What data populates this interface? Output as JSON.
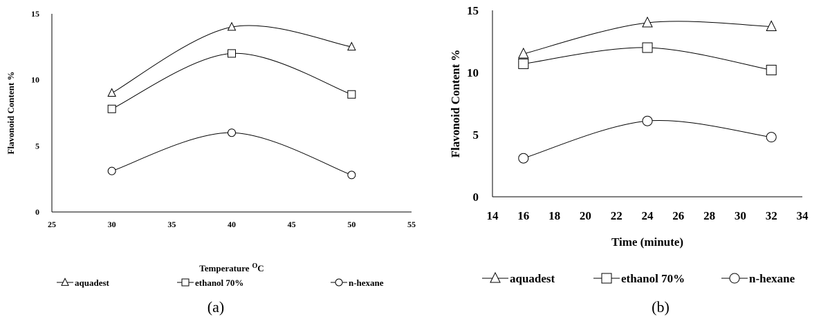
{
  "chart_data": [
    {
      "type": "line",
      "caption": "(a)",
      "xlabel": "Temperature",
      "xlabel_sup": "O",
      "xlabel_unit": "C",
      "ylabel": "Flavonoid Content %",
      "xlim": [
        25,
        55
      ],
      "ylim": [
        0,
        15
      ],
      "xticks": [
        25,
        30,
        35,
        40,
        45,
        50,
        55
      ],
      "yticks": [
        0,
        5,
        10,
        15
      ],
      "grid": false,
      "legend_position": "bottom",
      "x": [
        30,
        40,
        50
      ],
      "series": [
        {
          "name": "aquadest",
          "marker": "triangle",
          "values": [
            9.0,
            14.0,
            12.5
          ]
        },
        {
          "name": "ethanol 70%",
          "marker": "square",
          "values": [
            7.8,
            12.0,
            8.9
          ]
        },
        {
          "name": "n-hexane",
          "marker": "circle",
          "values": [
            3.1,
            6.0,
            2.8
          ]
        }
      ]
    },
    {
      "type": "line",
      "caption": "(b)",
      "xlabel": "Time (minute)",
      "ylabel": "Flavonoid Content %",
      "xlim": [
        14,
        34
      ],
      "ylim": [
        0,
        15
      ],
      "xticks": [
        14,
        16,
        18,
        20,
        22,
        24,
        26,
        28,
        30,
        32,
        34
      ],
      "yticks": [
        0,
        5,
        10,
        15
      ],
      "grid": false,
      "legend_position": "bottom",
      "x": [
        16,
        24,
        32
      ],
      "series": [
        {
          "name": "aquadest",
          "marker": "triangle",
          "values": [
            11.5,
            14.0,
            13.7
          ]
        },
        {
          "name": "ethanol 70%",
          "marker": "square",
          "values": [
            10.7,
            12.0,
            10.2
          ]
        },
        {
          "name": "n-hexane",
          "marker": "circle",
          "values": [
            3.1,
            6.1,
            4.8
          ]
        }
      ]
    }
  ]
}
